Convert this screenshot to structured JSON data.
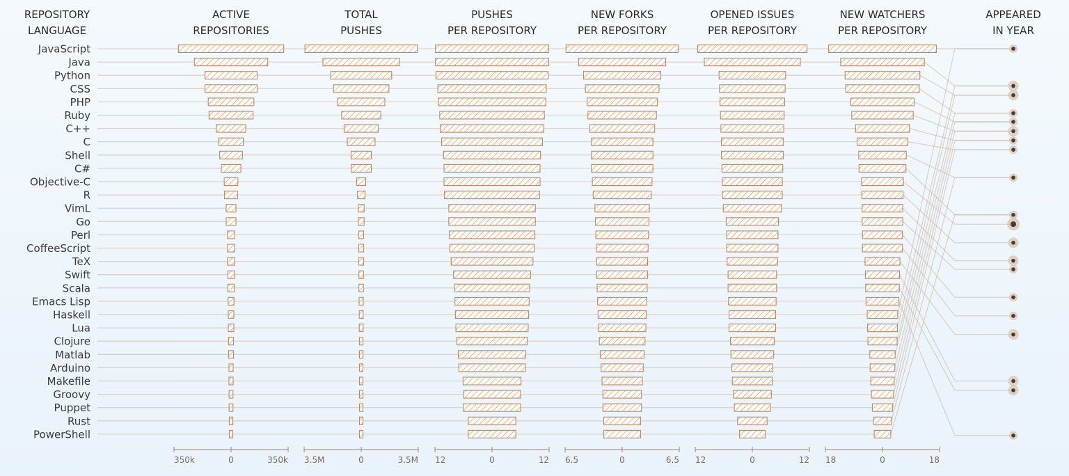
{
  "chart_data": {
    "type": "bar",
    "headers": [
      [
        "REPOSITORY",
        "LANGUAGE"
      ],
      [
        "ACTIVE",
        "REPOSITORIES"
      ],
      [
        "TOTAL",
        "PUSHES"
      ],
      [
        "PUSHES",
        "PER REPOSITORY"
      ],
      [
        "NEW FORKS",
        "PER REPOSITORY"
      ],
      [
        "OPENED ISSUES",
        "PER REPOSITORY"
      ],
      [
        "NEW WATCHERS",
        "PER REPOSITORY"
      ],
      [
        "APPEARED",
        "IN YEAR"
      ]
    ],
    "languages": [
      "JavaScript",
      "Java",
      "Python",
      "CSS",
      "PHP",
      "Ruby",
      "C++",
      "C",
      "Shell",
      "C#",
      "Objective-C",
      "R",
      "VimL",
      "Go",
      "Perl",
      "CoffeeScript",
      "TeX",
      "Swift",
      "Scala",
      "Emacs Lisp",
      "Haskell",
      "Lua",
      "Clojure",
      "Matlab",
      "Arduino",
      "Makefile",
      "Groovy",
      "Puppet",
      "Rust",
      "PowerShell"
    ],
    "metrics": [
      {
        "name": "ACTIVE REPOSITORIES",
        "max": 350000,
        "ticks": [
          "350k",
          "0",
          "350k"
        ],
        "values": [
          323000,
          225000,
          160000,
          160000,
          140000,
          135000,
          90000,
          75000,
          70000,
          60000,
          42000,
          40000,
          30000,
          30000,
          22000,
          22000,
          22000,
          20000,
          20000,
          18000,
          17000,
          17000,
          15000,
          15000,
          13000,
          13000,
          12000,
          12000,
          11000,
          10000
        ]
      },
      {
        "name": "TOTAL PUSHES",
        "max": 3500000,
        "ticks": [
          "3.5M",
          "0",
          "3.5M"
        ],
        "values": [
          3450000,
          2350000,
          1870000,
          1700000,
          1450000,
          1200000,
          1050000,
          850000,
          620000,
          620000,
          280000,
          230000,
          180000,
          180000,
          150000,
          150000,
          150000,
          140000,
          140000,
          130000,
          120000,
          120000,
          110000,
          110000,
          100000,
          100000,
          90000,
          90000,
          85000,
          80000
        ]
      },
      {
        "name": "PUSHES PER REPOSITORY",
        "max": 12,
        "ticks": [
          "12",
          "0",
          "12"
        ],
        "values": [
          11.9,
          11.9,
          11.8,
          11.4,
          11.3,
          11.0,
          10.9,
          10.6,
          10.2,
          10.1,
          10.1,
          10.0,
          9.1,
          9.1,
          9.0,
          8.9,
          8.6,
          8.1,
          7.9,
          7.8,
          7.7,
          7.6,
          7.4,
          7.1,
          7.0,
          6.1,
          6.0,
          6.0,
          5.0,
          5.0
        ]
      },
      {
        "name": "NEW FORKS PER REPOSITORY",
        "max": 6.5,
        "ticks": [
          "6.5",
          "0",
          "6.5"
        ],
        "values": [
          6.4,
          4.95,
          4.4,
          4.2,
          4.0,
          3.9,
          3.7,
          3.5,
          3.5,
          3.5,
          3.4,
          3.3,
          3.1,
          3.05,
          3.0,
          2.95,
          2.9,
          2.9,
          2.85,
          2.8,
          2.75,
          2.7,
          2.6,
          2.5,
          2.4,
          2.3,
          2.2,
          2.2,
          2.1,
          2.1
        ]
      },
      {
        "name": "OPENED ISSUES PER REPOSITORY",
        "max": 12,
        "ticks": [
          "12",
          "0",
          "12"
        ],
        "values": [
          11.5,
          10.1,
          7.0,
          6.9,
          6.8,
          6.7,
          6.6,
          6.5,
          6.5,
          6.4,
          6.3,
          6.3,
          6.1,
          5.5,
          5.4,
          5.4,
          5.3,
          5.1,
          5.1,
          5.0,
          4.9,
          4.9,
          4.6,
          4.5,
          4.3,
          4.2,
          4.0,
          3.8,
          3.1,
          2.7
        ]
      },
      {
        "name": "NEW WATCHERS PER REPOSITORY",
        "max": 18,
        "ticks": [
          "18",
          "0",
          "18"
        ],
        "values": [
          17.0,
          13.2,
          11.8,
          11.6,
          10.0,
          9.7,
          8.5,
          8.0,
          7.5,
          7.4,
          6.6,
          6.5,
          6.4,
          6.4,
          6.3,
          6.3,
          5.5,
          5.4,
          5.3,
          5.2,
          4.8,
          4.7,
          4.6,
          4.0,
          3.9,
          3.7,
          3.5,
          3.2,
          2.8,
          2.6
        ]
      }
    ],
    "appeared_markers": [
      {
        "row": 0.0,
        "size": "small"
      },
      {
        "row": 2.8,
        "size": "medium"
      },
      {
        "row": 3.5,
        "size": "medium"
      },
      {
        "row": 4.85,
        "size": "small"
      },
      {
        "row": 5.5,
        "size": "small"
      },
      {
        "row": 6.2,
        "size": "medium"
      },
      {
        "row": 6.9,
        "size": "small"
      },
      {
        "row": 7.6,
        "size": "small"
      },
      {
        "row": 9.7,
        "size": "small"
      },
      {
        "row": 12.5,
        "size": "small"
      },
      {
        "row": 13.2,
        "size": "large"
      },
      {
        "row": 14.6,
        "size": "medium"
      },
      {
        "row": 15.95,
        "size": "medium"
      },
      {
        "row": 16.6,
        "size": "small"
      },
      {
        "row": 18.7,
        "size": "small"
      },
      {
        "row": 20.1,
        "size": "small"
      },
      {
        "row": 21.5,
        "size": "medium"
      },
      {
        "row": 25.0,
        "size": "medium"
      },
      {
        "row": 25.7,
        "size": "medium"
      },
      {
        "row": 29.1,
        "size": "small"
      }
    ]
  }
}
